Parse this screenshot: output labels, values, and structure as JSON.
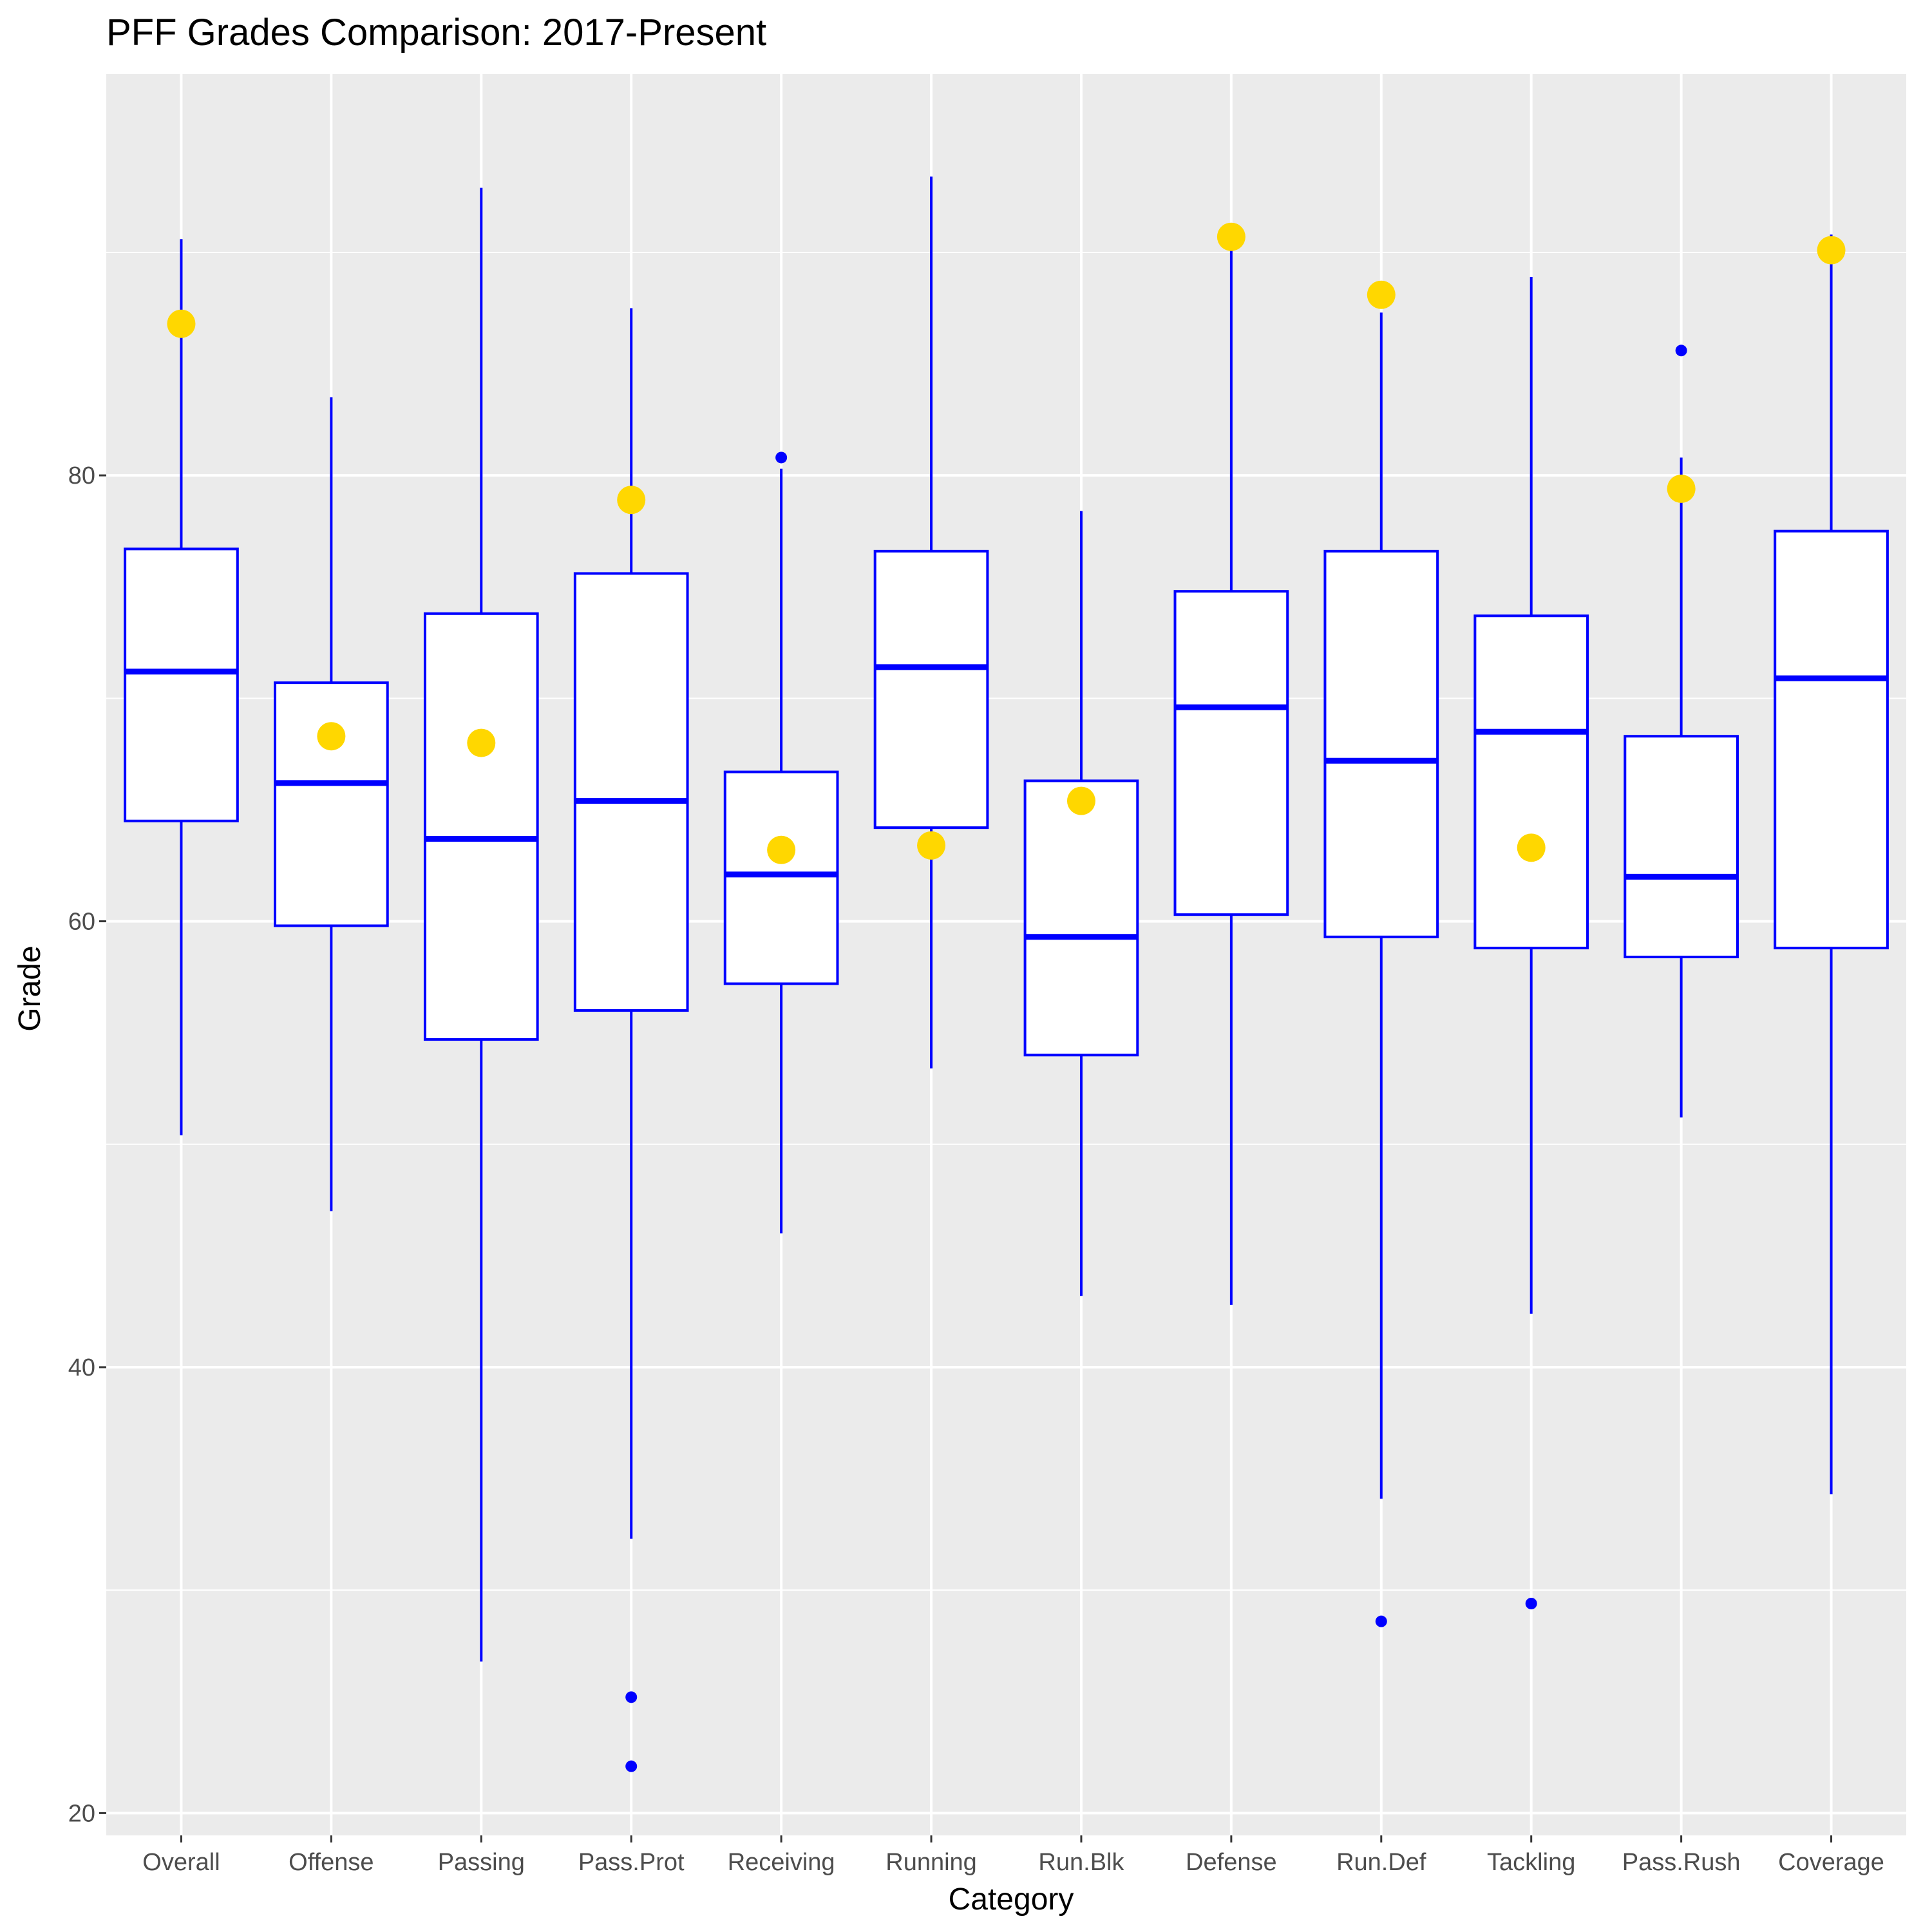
{
  "chart_data": {
    "type": "boxplot",
    "title": "PFF Grades Comparison: 2017-Present",
    "xlabel": "Category",
    "ylabel": "Grade",
    "ylim": [
      19,
      98
    ],
    "yticks": [
      20,
      40,
      60,
      80
    ],
    "y_minor_gridlines": [
      30,
      50,
      70,
      90
    ],
    "grid": true,
    "colors": {
      "panel_bg": "#ebebeb",
      "grid": "#ffffff",
      "box_line": "#0000ff",
      "box_fill": "#ffffff",
      "highlight_point": "#ffd700",
      "tick_text": "#4d4d4d",
      "tick_mark": "#333333"
    },
    "categories": [
      "Overall",
      "Offense",
      "Passing",
      "Pass.Prot",
      "Receiving",
      "Running",
      "Run.Blk",
      "Defense",
      "Run.Def",
      "Tackling",
      "Pass.Rush",
      "Coverage"
    ],
    "boxes": [
      {
        "category": "Overall",
        "whisker_low": 50.4,
        "q1": 64.5,
        "median": 71.2,
        "q3": 76.7,
        "whisker_high": 90.6,
        "outliers": []
      },
      {
        "category": "Offense",
        "whisker_low": 47.0,
        "q1": 59.8,
        "median": 66.2,
        "q3": 70.7,
        "whisker_high": 83.5,
        "outliers": []
      },
      {
        "category": "Passing",
        "whisker_low": 26.8,
        "q1": 54.7,
        "median": 63.7,
        "q3": 73.8,
        "whisker_high": 92.9,
        "outliers": []
      },
      {
        "category": "Pass.Prot",
        "whisker_low": 32.3,
        "q1": 56.0,
        "median": 65.4,
        "q3": 75.6,
        "whisker_high": 87.5,
        "outliers": [
          25.2,
          22.1
        ]
      },
      {
        "category": "Receiving",
        "whisker_low": 46.0,
        "q1": 57.2,
        "median": 62.1,
        "q3": 66.7,
        "whisker_high": 80.3,
        "outliers": [
          80.8
        ]
      },
      {
        "category": "Running",
        "whisker_low": 53.4,
        "q1": 64.2,
        "median": 71.4,
        "q3": 76.6,
        "whisker_high": 93.4,
        "outliers": []
      },
      {
        "category": "Run.Blk",
        "whisker_low": 43.2,
        "q1": 54.0,
        "median": 59.3,
        "q3": 66.3,
        "whisker_high": 78.4,
        "outliers": []
      },
      {
        "category": "Defense",
        "whisker_low": 42.8,
        "q1": 60.3,
        "median": 69.6,
        "q3": 74.8,
        "whisker_high": 90.4,
        "outliers": []
      },
      {
        "category": "Run.Def",
        "whisker_low": 34.1,
        "q1": 59.3,
        "median": 67.2,
        "q3": 76.6,
        "whisker_high": 87.3,
        "outliers": [
          28.6
        ]
      },
      {
        "category": "Tackling",
        "whisker_low": 42.4,
        "q1": 58.8,
        "median": 68.5,
        "q3": 73.7,
        "whisker_high": 88.9,
        "outliers": [
          29.4
        ]
      },
      {
        "category": "Pass.Rush",
        "whisker_low": 51.2,
        "q1": 58.4,
        "median": 62.0,
        "q3": 68.3,
        "whisker_high": 80.8,
        "outliers": [
          85.6
        ]
      },
      {
        "category": "Coverage",
        "whisker_low": 34.3,
        "q1": 58.8,
        "median": 70.9,
        "q3": 77.5,
        "whisker_high": 90.8,
        "outliers": []
      }
    ],
    "highlight_points": [
      {
        "category": "Overall",
        "value": 86.8
      },
      {
        "category": "Offense",
        "value": 68.3
      },
      {
        "category": "Passing",
        "value": 68.0
      },
      {
        "category": "Pass.Prot",
        "value": 78.9
      },
      {
        "category": "Receiving",
        "value": 63.2
      },
      {
        "category": "Running",
        "value": 63.4
      },
      {
        "category": "Run.Blk",
        "value": 65.4
      },
      {
        "category": "Defense",
        "value": 90.7
      },
      {
        "category": "Run.Def",
        "value": 88.1
      },
      {
        "category": "Tackling",
        "value": 63.3
      },
      {
        "category": "Pass.Rush",
        "value": 79.4
      },
      {
        "category": "Coverage",
        "value": 90.1
      }
    ]
  }
}
